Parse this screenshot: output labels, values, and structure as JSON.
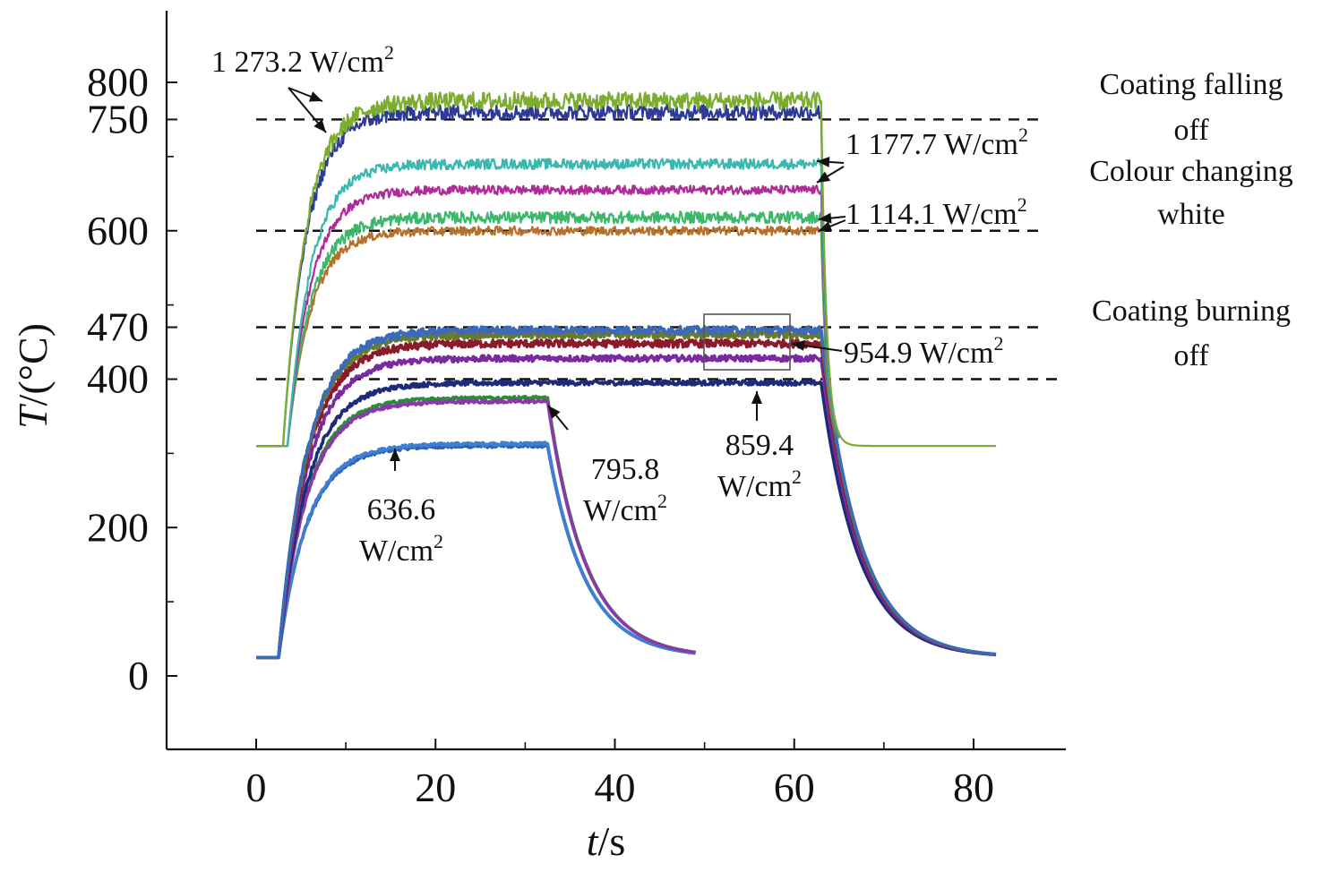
{
  "chart_data": {
    "type": "line",
    "title": "",
    "xlabel": {
      "italic": "t",
      "rest": "/s"
    },
    "ylabel": {
      "italic": "T",
      "rest": "/(°C)"
    },
    "xlim": [
      -10,
      90
    ],
    "ylim": [
      -100,
      900
    ],
    "xticks": [
      0,
      20,
      40,
      60,
      80
    ],
    "xtick_labels": [
      "0",
      "20",
      "40",
      "60",
      "80"
    ],
    "yticks": [
      0,
      200,
      400,
      470,
      600,
      750,
      800
    ],
    "ytick_labels": [
      "0",
      "200",
      "400",
      "470",
      "600",
      "750",
      "800"
    ],
    "grid": false,
    "legend": "none",
    "thresholds": [
      {
        "value": 750,
        "label_lines": [
          "Coating falling",
          "off"
        ]
      },
      {
        "value": 600,
        "label_lines": [
          "Colour changing",
          "white"
        ]
      },
      {
        "value": 470,
        "label_lines": [
          "Coating burning",
          "off"
        ]
      },
      {
        "value": 400,
        "label_lines": []
      }
    ],
    "annotations": [
      {
        "lines": [
          "1 273.2 W/cm"
        ],
        "sup": "2"
      },
      {
        "lines": [
          "1 177.7 W/cm"
        ],
        "sup": "2"
      },
      {
        "lines": [
          "1 114.1 W/cm"
        ],
        "sup": "2"
      },
      {
        "lines": [
          "954.9 W/cm"
        ],
        "sup": "2"
      },
      {
        "lines": [
          "859.4",
          "W/cm"
        ],
        "sup": "2"
      },
      {
        "lines": [
          "795.8",
          "W/cm"
        ],
        "sup": "2"
      },
      {
        "lines": [
          "636.6",
          "W/cm"
        ],
        "sup": "2"
      }
    ],
    "series": [
      {
        "power": 636.6,
        "color": "#2f5fb8",
        "start_temp": 25,
        "steady": 310,
        "t_on": 2.5,
        "t_off": 32.5,
        "end_t": 49,
        "baseline": 25,
        "noise": 2
      },
      {
        "power": 636.6,
        "color": "#3f7fd0",
        "start_temp": 25,
        "steady": 313,
        "t_on": 2.5,
        "t_off": 32.5,
        "end_t": 49,
        "baseline": 25,
        "noise": 2
      },
      {
        "power": 795.8,
        "color": "#2e8b3a",
        "start_temp": 25,
        "steady": 375,
        "t_on": 2.5,
        "t_off": 32.5,
        "end_t": 49,
        "baseline": 25,
        "noise": 2
      },
      {
        "power": 795.8,
        "color": "#8a3aa8",
        "start_temp": 25,
        "steady": 370,
        "t_on": 2.5,
        "t_off": 32.5,
        "end_t": 49,
        "baseline": 25,
        "noise": 2
      },
      {
        "power": 859.4,
        "color": "#1f2a7a",
        "start_temp": 25,
        "steady": 395,
        "t_on": 2.5,
        "t_off": 63,
        "end_t": 82.5,
        "baseline": 25,
        "noise": 3
      },
      {
        "power": 954.9,
        "color": "#7a2aa0",
        "start_temp": 25,
        "steady": 428,
        "t_on": 2.5,
        "t_off": 63,
        "end_t": 82.5,
        "baseline": 25,
        "noise": 4
      },
      {
        "power": 954.9,
        "color": "#8b1a2a",
        "start_temp": 25,
        "steady": 448,
        "t_on": 2.5,
        "t_off": 63,
        "end_t": 82.5,
        "baseline": 25,
        "noise": 5
      },
      {
        "power": 954.9,
        "color": "#6a7a2a",
        "start_temp": 25,
        "steady": 460,
        "t_on": 2.5,
        "t_off": 63,
        "end_t": 82.5,
        "baseline": 25,
        "noise": 5
      },
      {
        "power": 954.9,
        "color": "#3a6ab8",
        "start_temp": 25,
        "steady": 466,
        "t_on": 2.5,
        "t_off": 63,
        "end_t": 82.5,
        "baseline": 25,
        "noise": 5
      },
      {
        "power": 1114.1,
        "color": "#b5702a",
        "start_temp": 310,
        "steady": 600,
        "t_on": 3.5,
        "t_off": 63,
        "end_t": 65,
        "baseline": 310,
        "noise": 6
      },
      {
        "power": 1114.1,
        "color": "#3cb86a",
        "start_temp": 310,
        "steady": 618,
        "t_on": 3.5,
        "t_off": 63,
        "end_t": 65,
        "baseline": 310,
        "noise": 8
      },
      {
        "power": 1177.7,
        "color": "#b02a98",
        "start_temp": 310,
        "steady": 655,
        "t_on": 3.5,
        "t_off": 63,
        "end_t": 65,
        "baseline": 310,
        "noise": 6
      },
      {
        "power": 1177.7,
        "color": "#3ab8b0",
        "start_temp": 310,
        "steady": 690,
        "t_on": 3.5,
        "t_off": 63,
        "end_t": 65,
        "baseline": 310,
        "noise": 7
      },
      {
        "power": 1273.2,
        "color": "#2e3a98",
        "start_temp": 310,
        "steady": 760,
        "t_on": 3,
        "t_off": 63,
        "end_t": 65,
        "baseline": 310,
        "noise": 10
      },
      {
        "power": 1273.2,
        "color": "#7cad2e",
        "start_temp": 310,
        "steady": 775,
        "t_on": 3,
        "t_off": 63,
        "end_t": 82.5,
        "baseline": 310,
        "noise": 12
      }
    ]
  }
}
